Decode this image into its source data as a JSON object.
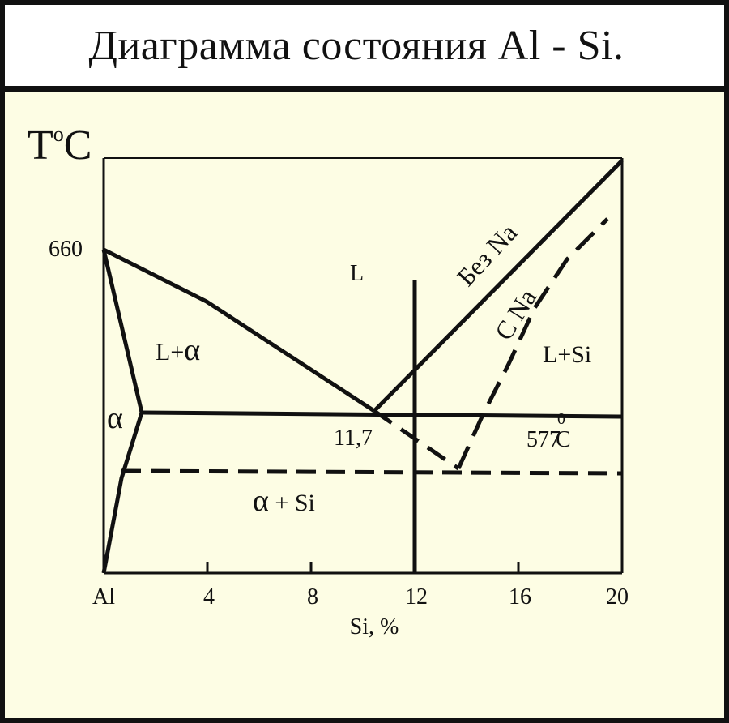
{
  "title": "Диаграмма состояния Al - Si.",
  "colors": {
    "background": "#fdfde4",
    "title_background": "#ffffff",
    "ink": "#111111"
  },
  "axes": {
    "y_label_main": "T",
    "y_label_sup": "o",
    "y_label_unit": "C",
    "y_tick_label": "660",
    "x_label": "Si, %",
    "x_ticks": [
      "Al",
      "4",
      "8",
      "12",
      "16",
      "20"
    ]
  },
  "regions": {
    "liquid": "L",
    "liquid_alpha": "L+",
    "alpha": "α",
    "liquid_si": "L+Si",
    "alpha_si": "α",
    "alpha_si_rest": " + Si"
  },
  "annotations": {
    "eutectic_composition": "11,7",
    "eutectic_temp_value": "577",
    "eutectic_temp_sup": "0",
    "eutectic_temp_unit": "C",
    "without_na": "Без Na",
    "with_na": "С Na"
  }
}
